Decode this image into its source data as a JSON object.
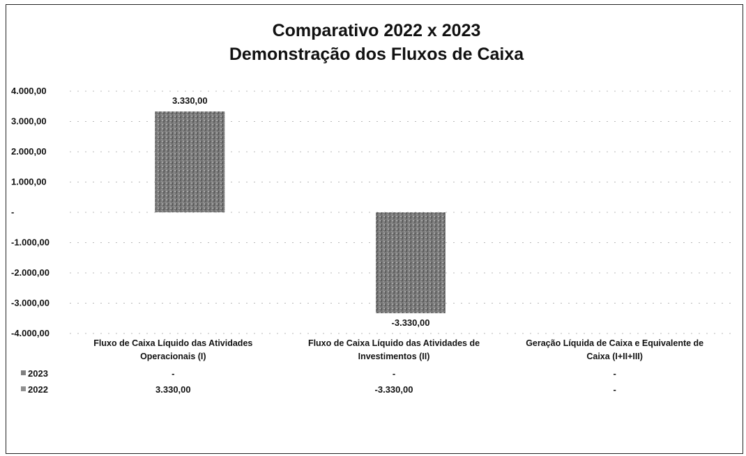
{
  "chart_data": {
    "type": "bar",
    "title": "Comparativo 2022 x 2023",
    "subtitle": "Demonstração dos Fluxos de Caixa",
    "categories": [
      [
        "Fluxo de Caixa Líquido das Atividades",
        "Operacionais (I)"
      ],
      [
        "Fluxo de Caixa Líquido das Atividades de",
        "Investimentos (II)"
      ],
      [
        "Geração Líquida de Caixa e Equivalente de",
        "Caixa (I+II+III)"
      ]
    ],
    "series": [
      {
        "name": "2023",
        "values": [
          0,
          0,
          0
        ],
        "display": [
          "-",
          "-",
          "-"
        ],
        "color": "#808080"
      },
      {
        "name": "2022",
        "values": [
          3330,
          -3330,
          0
        ],
        "display": [
          "3.330,00",
          "-3.330,00",
          "-"
        ],
        "color": "#8f8f8f"
      }
    ],
    "data_labels": [
      "3.330,00",
      "-3.330,00"
    ],
    "y_ticks": [
      {
        "value": 4000,
        "label": "4.000,00"
      },
      {
        "value": 3000,
        "label": "3.000,00"
      },
      {
        "value": 2000,
        "label": "2.000,00"
      },
      {
        "value": 1000,
        "label": "1.000,00"
      },
      {
        "value": 0,
        "label": "-"
      },
      {
        "value": -1000,
        "label": "-1.000,00"
      },
      {
        "value": -2000,
        "label": "-2.000,00"
      },
      {
        "value": -3000,
        "label": "-3.000,00"
      },
      {
        "value": -4000,
        "label": "-4.000,00"
      }
    ],
    "ylim": [
      -4000,
      4000
    ],
    "grid": true,
    "legend": "data-table"
  }
}
